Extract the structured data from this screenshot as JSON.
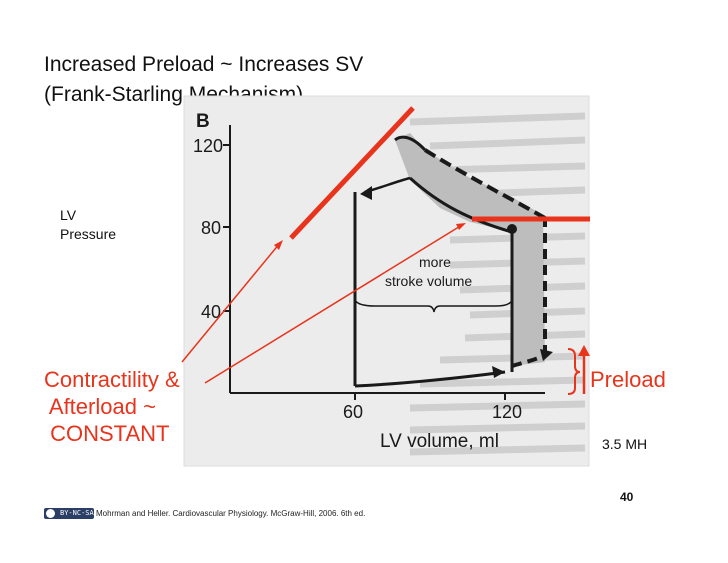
{
  "slide": {
    "title_line1": "Increased Preload ~ Increases  SV",
    "title_line2": "(Frank-Starling Mechanism)",
    "lv_label_line1": "LV",
    "lv_label_line2": "Pressure",
    "contractility_lines": [
      "Contractility &",
      " Afterload ~",
      " CONSTANT"
    ],
    "preload_label": "Preload",
    "initials": "3.5 MH",
    "page_number": "40",
    "citation": "Mohrman and Heller. Cardiovascular Physiology. McGraw-Hill, 2006. 6th ed.",
    "license_badge": "BY-NC-SA"
  },
  "figure": {
    "panel_label": "B",
    "y_ticks": [
      "120",
      "80",
      "40"
    ],
    "x_ticks": [
      "60",
      "120"
    ],
    "x_axis_label": "LV volume, ml",
    "shaded_area_label_line1": "more",
    "shaded_area_label_line2": "stroke volume"
  },
  "colors": {
    "accent_red": "#e8341c",
    "shading": "#bdbdbd",
    "ink": "#1a1a1a"
  }
}
